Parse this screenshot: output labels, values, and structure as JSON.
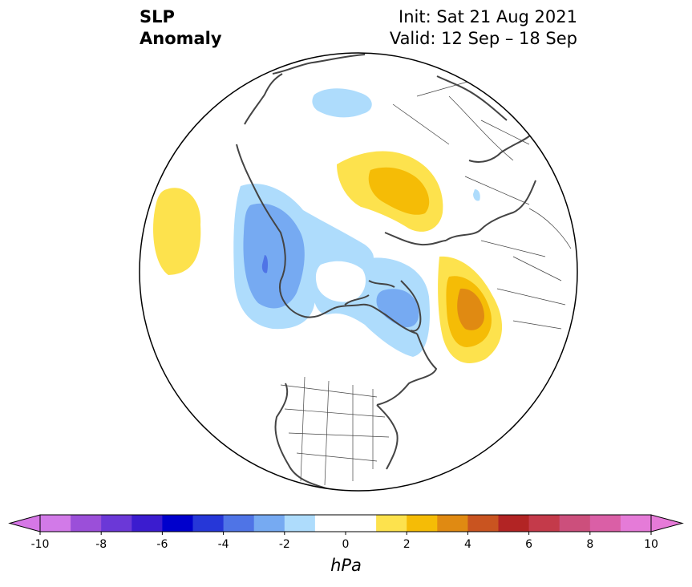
{
  "header": {
    "title_line1": "SLP",
    "title_line2": "Anomaly",
    "init": "Init: Sat 21 Aug 2021",
    "valid": "Valid: 12 Sep – 18 Sep"
  },
  "map": {
    "projection": "north-polar-stereographic",
    "land_outline_color": "#444444",
    "background": "#ffffff"
  },
  "colorbar": {
    "unit": "hPa",
    "min": -10,
    "max": 10,
    "step": 1,
    "extend": "both",
    "ticks": [
      "-10",
      "-8",
      "-6",
      "-4",
      "-2",
      "0",
      "2",
      "4",
      "6",
      "8",
      "10"
    ],
    "colors": [
      "#d27ae8",
      "#9b4fd9",
      "#6b38d7",
      "#3b1ccf",
      "#0000cc",
      "#2637d8",
      "#4f74e6",
      "#76aaf2",
      "#aedcfc",
      "#ffffff",
      "#ffffff",
      "#fde24d",
      "#f5bc06",
      "#e08a12",
      "#c95420",
      "#b22424",
      "#c43a4a",
      "#cc4f7c",
      "#da5fa6",
      "#e57bd8"
    ],
    "under_color": "#d677e6",
    "over_color": "#e67ad8"
  }
}
